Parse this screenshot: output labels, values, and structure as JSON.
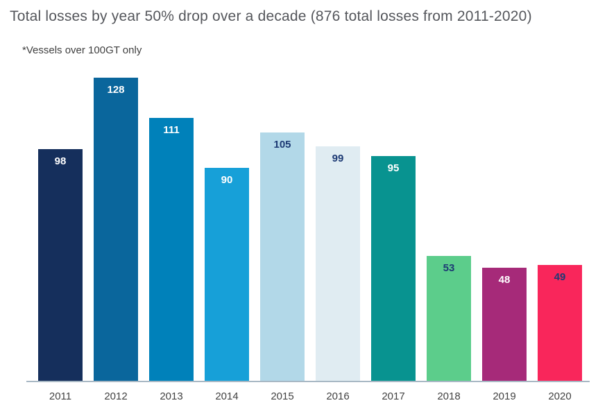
{
  "title": "Total losses by year 50% drop over a decade (876 total losses from 2011-2020)",
  "subtitle": "*Vessels over 100GT only",
  "chart_data": {
    "type": "bar",
    "title": "Total losses by year 50% drop over a decade (876 total losses from 2011-2020)",
    "subtitle": "*Vessels over 100GT only",
    "categories": [
      "2011",
      "2012",
      "2013",
      "2014",
      "2015",
      "2016",
      "2017",
      "2018",
      "2019",
      "2020"
    ],
    "values": [
      98,
      128,
      111,
      90,
      105,
      99,
      95,
      53,
      48,
      49
    ],
    "total": 876,
    "xlabel": "",
    "ylabel": "",
    "ylim": [
      0,
      128
    ],
    "grid": false,
    "legend": "none",
    "value_labels": "inside-top",
    "bar_colors": [
      "#152f5c",
      "#0a669c",
      "#0081ba",
      "#17a0d8",
      "#b2d8e8",
      "#e0ecf2",
      "#089390",
      "#5ccd8b",
      "#a62a79",
      "#f9265b"
    ],
    "value_label_colors": [
      "#ffffff",
      "#ffffff",
      "#ffffff",
      "#ffffff",
      "#1d3a74",
      "#1d3a74",
      "#ffffff",
      "#1d3a74",
      "#ffffff",
      "#1d3a74"
    ],
    "colors": {
      "title_text": "#54565b",
      "subtitle_text": "#3f3f3f",
      "axis_tick_text": "#414141",
      "axis_line": "#a8b8c4",
      "background": "#ffffff"
    }
  }
}
